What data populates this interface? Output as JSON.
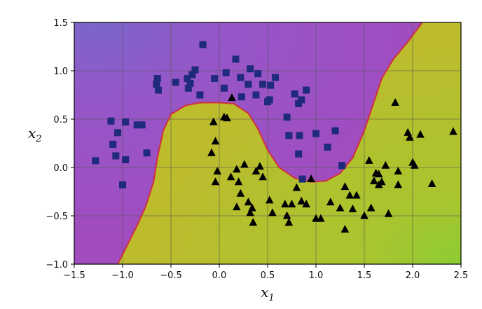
{
  "chart_data": {
    "type": "scatter",
    "title": "",
    "xlabel": {
      "base": "x",
      "sub": "1"
    },
    "ylabel": {
      "base": "x",
      "sub": "2"
    },
    "xlim": [
      -1.5,
      2.5
    ],
    "ylim": [
      -1.0,
      1.5
    ],
    "xticks": [
      "−1.5",
      "−1.0",
      "−0.5",
      "0.0",
      "0.5",
      "1.0",
      "1.5",
      "2.0",
      "2.5"
    ],
    "xtick_values": [
      -1.5,
      -1.0,
      -0.5,
      0.0,
      0.5,
      1.0,
      1.5,
      2.0,
      2.5
    ],
    "yticks": [
      "−1.0",
      "−0.5",
      "0.0",
      "0.5",
      "1.0",
      "1.5"
    ],
    "ytick_values": [
      -1.0,
      -0.5,
      0.0,
      0.5,
      1.0,
      1.5
    ],
    "grid": true,
    "colors": {
      "class0_region": "#9b59c6",
      "class0_far": "#7a5fc6",
      "class1_region": "#b8bf2e",
      "class1_far": "#9cc630",
      "boundary": "#d0303a",
      "square_marker": "#1f2a7a",
      "triangle_marker": "#000000",
      "grid": "#555555"
    },
    "decision_boundary": [
      [
        -1.05,
        -1.0
      ],
      [
        -0.95,
        -0.8
      ],
      [
        -0.85,
        -0.6
      ],
      [
        -0.76,
        -0.4
      ],
      [
        -0.68,
        -0.15
      ],
      [
        -0.64,
        0.1
      ],
      [
        -0.58,
        0.38
      ],
      [
        -0.5,
        0.55
      ],
      [
        -0.35,
        0.64
      ],
      [
        -0.2,
        0.67
      ],
      [
        0.0,
        0.67
      ],
      [
        0.15,
        0.66
      ],
      [
        0.3,
        0.56
      ],
      [
        0.4,
        0.4
      ],
      [
        0.5,
        0.18
      ],
      [
        0.62,
        0.0
      ],
      [
        0.78,
        -0.11
      ],
      [
        0.95,
        -0.15
      ],
      [
        1.1,
        -0.14
      ],
      [
        1.25,
        -0.06
      ],
      [
        1.38,
        0.1
      ],
      [
        1.5,
        0.38
      ],
      [
        1.6,
        0.68
      ],
      [
        1.68,
        0.92
      ],
      [
        1.8,
        1.12
      ],
      [
        1.95,
        1.3
      ],
      [
        2.1,
        1.5
      ]
    ],
    "series": [
      {
        "marker": "square",
        "points": [
          [
            -1.28,
            0.07
          ],
          [
            -1.12,
            0.48
          ],
          [
            -1.1,
            0.24
          ],
          [
            -1.05,
            0.36
          ],
          [
            -1.07,
            0.12
          ],
          [
            -1.0,
            -0.18
          ],
          [
            -0.97,
            0.47
          ],
          [
            -0.97,
            0.08
          ],
          [
            -0.85,
            0.44
          ],
          [
            -0.8,
            0.44
          ],
          [
            -0.75,
            0.15
          ],
          [
            -0.65,
            0.86
          ],
          [
            -0.64,
            0.92
          ],
          [
            -0.63,
            0.8
          ],
          [
            -0.45,
            0.88
          ],
          [
            -0.33,
            0.92
          ],
          [
            -0.3,
            0.87
          ],
          [
            -0.32,
            0.82
          ],
          [
            -0.28,
            0.96
          ],
          [
            -0.25,
            1.01
          ],
          [
            -0.2,
            0.75
          ],
          [
            -0.17,
            1.27
          ],
          [
            -0.05,
            0.92
          ],
          [
            0.05,
            0.82
          ],
          [
            0.07,
            0.98
          ],
          [
            0.17,
            1.12
          ],
          [
            0.22,
            0.93
          ],
          [
            0.23,
            0.73
          ],
          [
            0.3,
            0.86
          ],
          [
            0.32,
            1.02
          ],
          [
            0.38,
            0.75
          ],
          [
            0.4,
            0.97
          ],
          [
            0.45,
            0.86
          ],
          [
            0.5,
            0.68
          ],
          [
            0.52,
            0.7
          ],
          [
            0.53,
            0.85
          ],
          [
            0.58,
            0.93
          ],
          [
            0.7,
            0.52
          ],
          [
            0.72,
            0.33
          ],
          [
            0.78,
            0.76
          ],
          [
            0.82,
            0.66
          ],
          [
            0.83,
            0.33
          ],
          [
            0.85,
            0.7
          ],
          [
            0.9,
            0.8
          ],
          [
            0.82,
            0.14
          ],
          [
            0.86,
            -0.12
          ],
          [
            1.0,
            0.35
          ],
          [
            1.12,
            0.21
          ],
          [
            1.2,
            0.38
          ],
          [
            1.27,
            0.02
          ]
        ]
      },
      {
        "marker": "triangle",
        "points": [
          [
            -0.06,
            0.47
          ],
          [
            -0.04,
            0.27
          ],
          [
            -0.08,
            0.15
          ],
          [
            -0.02,
            -0.04
          ],
          [
            -0.04,
            -0.15
          ],
          [
            0.05,
            0.52
          ],
          [
            0.08,
            0.51
          ],
          [
            0.13,
            0.72
          ],
          [
            0.12,
            -0.1
          ],
          [
            0.18,
            -0.02
          ],
          [
            0.2,
            -0.15
          ],
          [
            0.18,
            -0.41
          ],
          [
            0.22,
            -0.27
          ],
          [
            0.26,
            0.03
          ],
          [
            0.3,
            -0.36
          ],
          [
            0.32,
            -0.47
          ],
          [
            0.34,
            -0.42
          ],
          [
            0.35,
            -0.57
          ],
          [
            0.38,
            -0.04
          ],
          [
            0.42,
            0.01
          ],
          [
            0.45,
            -0.1
          ],
          [
            0.52,
            -0.34
          ],
          [
            0.55,
            -0.47
          ],
          [
            0.68,
            -0.38
          ],
          [
            0.7,
            -0.5
          ],
          [
            0.72,
            -0.57
          ],
          [
            0.75,
            -0.38
          ],
          [
            0.8,
            -0.21
          ],
          [
            0.85,
            -0.35
          ],
          [
            0.9,
            -0.38
          ],
          [
            0.95,
            -0.12
          ],
          [
            1.0,
            -0.53
          ],
          [
            1.05,
            -0.53
          ],
          [
            1.15,
            -0.36
          ],
          [
            1.25,
            -0.42
          ],
          [
            1.3,
            -0.64
          ],
          [
            1.3,
            -0.2
          ],
          [
            1.35,
            -0.29
          ],
          [
            1.38,
            -0.43
          ],
          [
            1.42,
            -0.29
          ],
          [
            1.5,
            -0.5
          ],
          [
            1.55,
            0.07
          ],
          [
            1.57,
            -0.42
          ],
          [
            1.6,
            -0.14
          ],
          [
            1.62,
            -0.06
          ],
          [
            1.65,
            -0.07
          ],
          [
            1.65,
            -0.18
          ],
          [
            1.68,
            -0.15
          ],
          [
            1.72,
            0.02
          ],
          [
            1.75,
            -0.48
          ],
          [
            1.82,
            0.67
          ],
          [
            1.85,
            -0.18
          ],
          [
            1.85,
            -0.04
          ],
          [
            1.95,
            0.36
          ],
          [
            1.97,
            0.31
          ],
          [
            2.0,
            0.05
          ],
          [
            2.02,
            0.02
          ],
          [
            2.08,
            0.34
          ],
          [
            2.2,
            -0.17
          ],
          [
            2.42,
            0.37
          ]
        ]
      }
    ]
  }
}
